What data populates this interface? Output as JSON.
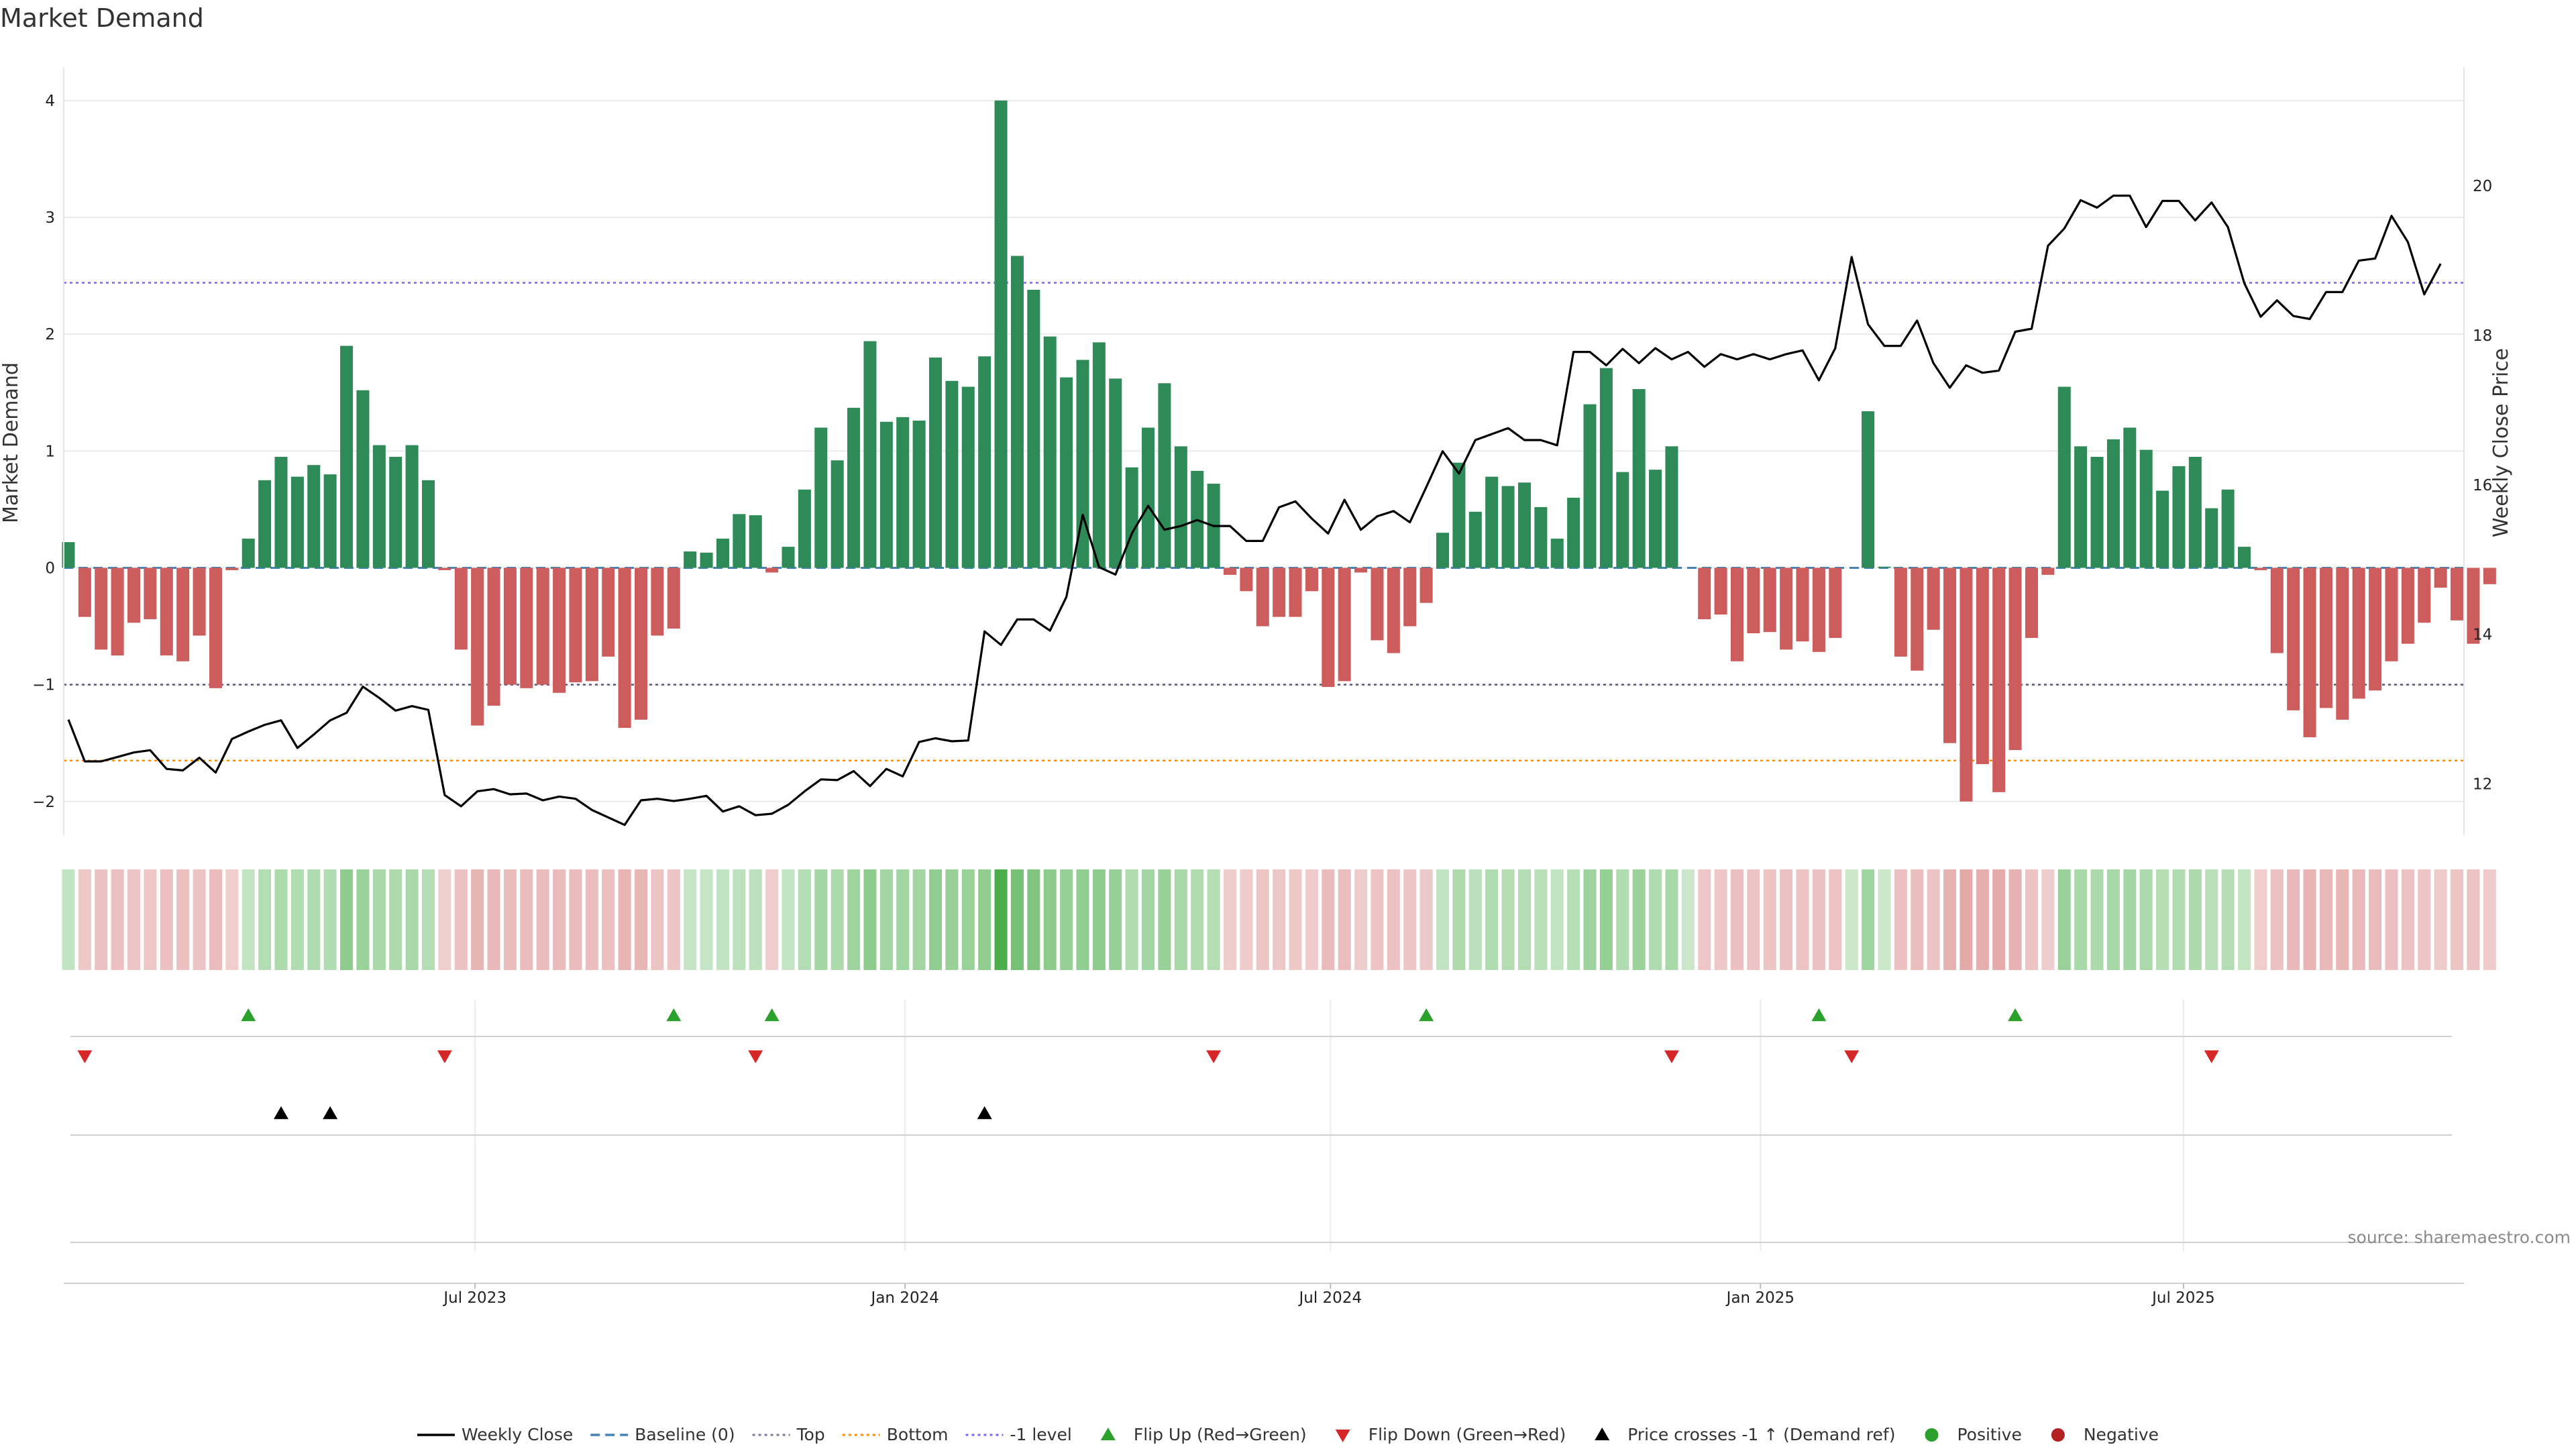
{
  "colors": {
    "green": "#2e8b57",
    "red": "#cd5c5c",
    "line": "#000000",
    "baseline": "#4682b4",
    "top": "#7b68ee",
    "bottom": "#ff8c00",
    "minus_one": "#555577",
    "flip_up": "#2ca02c",
    "flip_down": "#d62728",
    "cross": "#000000",
    "positive": "#2ca02c",
    "negative": "#b22222",
    "grid": "#ececec",
    "source": "#8a8a8a"
  },
  "chart_data": {
    "type": "bar",
    "title": "Market Demand",
    "ylabel": "Market Demand",
    "y2label": "Weekly Close Price",
    "source": "source: sharemaestro.com",
    "ylim": [
      -2.3,
      4.2
    ],
    "y2lim": [
      10.9,
      21.6
    ],
    "yticks": [
      -2,
      -1,
      0,
      1,
      2,
      3,
      4
    ],
    "y2ticks": [
      12,
      14,
      16,
      18,
      20
    ],
    "xlim": [
      "2023-01-06",
      "2025-10-29"
    ],
    "xticks": [
      {
        "date": "2023-07-01",
        "label": "Jul 2023"
      },
      {
        "date": "2024-01-01",
        "label": "Jan 2024"
      },
      {
        "date": "2024-07-01",
        "label": "Jul 2024"
      },
      {
        "date": "2025-01-01",
        "label": "Jan 2025"
      },
      {
        "date": "2025-07-01",
        "label": "Jul 2025"
      }
    ],
    "reference_lines": {
      "baseline": 0,
      "top": 2.44,
      "bottom": -1.65,
      "minus_one": -1
    },
    "start_date": "2023-01-08",
    "week_step_days": 7,
    "demand": [
      0.22,
      -0.42,
      -0.7,
      -0.75,
      -0.47,
      -0.44,
      -0.75,
      -0.8,
      -0.58,
      -1.03,
      -0.02,
      0.25,
      0.75,
      0.95,
      0.78,
      0.88,
      0.8,
      1.9,
      1.52,
      1.05,
      0.95,
      1.05,
      0.75,
      -0.02,
      -0.7,
      -1.35,
      -1.18,
      -1.0,
      -1.03,
      -1.0,
      -1.07,
      -0.98,
      -0.97,
      -0.76,
      -1.37,
      -1.3,
      -0.58,
      -0.52,
      0.14,
      0.13,
      0.25,
      0.46,
      0.45,
      -0.04,
      0.18,
      0.67,
      1.2,
      0.92,
      1.37,
      1.94,
      1.25,
      1.29,
      1.26,
      1.8,
      1.6,
      1.55,
      1.81,
      4.0,
      2.67,
      2.38,
      1.98,
      1.63,
      1.78,
      1.93,
      1.62,
      0.86,
      1.2,
      1.58,
      1.04,
      0.83,
      0.72,
      -0.06,
      -0.2,
      -0.5,
      -0.42,
      -0.42,
      -0.2,
      -1.02,
      -0.97,
      -0.04,
      -0.62,
      -0.73,
      -0.5,
      -0.3,
      0.3,
      0.9,
      0.48,
      0.78,
      0.7,
      0.73,
      0.52,
      0.25,
      0.6,
      1.4,
      1.71,
      0.82,
      1.53,
      0.84,
      1.04,
      0.0,
      -0.44,
      -0.4,
      -0.8,
      -0.56,
      -0.55,
      -0.7,
      -0.63,
      -0.72,
      -0.6,
      0.0,
      1.34,
      0.01,
      -0.76,
      -0.88,
      -0.53,
      -1.5,
      -2.0,
      -1.68,
      -1.92,
      -1.56,
      -0.6,
      -0.06,
      1.55,
      1.04,
      0.95,
      1.1,
      1.2,
      1.01,
      0.66,
      0.87,
      0.95,
      0.51,
      0.67,
      0.18,
      -0.02,
      -0.73,
      -1.22,
      -1.45,
      -1.2,
      -1.3,
      -1.12,
      -1.05,
      -0.8,
      -0.65,
      -0.47,
      -0.17,
      -0.45,
      -0.65,
      -0.14
    ],
    "close": [
      12.86,
      12.3,
      12.3,
      12.36,
      12.42,
      12.45,
      12.2,
      12.18,
      12.35,
      12.15,
      12.6,
      12.7,
      12.79,
      12.85,
      12.48,
      12.66,
      12.85,
      12.95,
      13.3,
      13.15,
      12.98,
      13.04,
      12.99,
      11.85,
      11.7,
      11.9,
      11.93,
      11.86,
      11.87,
      11.78,
      11.83,
      11.8,
      11.65,
      11.55,
      11.45,
      11.78,
      11.8,
      11.77,
      11.8,
      11.84,
      11.63,
      11.7,
      11.58,
      11.6,
      11.72,
      11.9,
      12.06,
      12.05,
      12.17,
      11.97,
      12.2,
      12.1,
      12.56,
      12.61,
      12.57,
      12.58,
      14.04,
      13.86,
      14.2,
      14.2,
      14.05,
      14.5,
      15.6,
      14.9,
      14.8,
      15.35,
      15.72,
      15.4,
      15.45,
      15.53,
      15.45,
      15.45,
      15.25,
      15.25,
      15.7,
      15.78,
      15.55,
      15.35,
      15.8,
      15.4,
      15.58,
      15.65,
      15.5,
      15.97,
      16.45,
      16.15,
      16.6,
      16.68,
      16.76,
      16.6,
      16.6,
      16.53,
      17.78,
      17.78,
      17.6,
      17.82,
      17.63,
      17.83,
      17.68,
      17.78,
      17.58,
      17.75,
      17.68,
      17.75,
      17.68,
      17.75,
      17.8,
      17.4,
      17.83,
      19.05,
      18.15,
      17.86,
      17.86,
      18.2,
      17.63,
      17.3,
      17.6,
      17.5,
      17.53,
      18.05,
      18.09,
      19.2,
      19.43,
      19.81,
      19.71,
      19.87,
      19.87,
      19.45,
      19.8,
      19.8,
      19.54,
      19.78,
      19.45,
      18.7,
      18.25,
      18.47,
      18.26,
      18.22,
      18.58,
      18.58,
      19.0,
      19.03,
      19.6,
      19.25,
      18.55,
      18.96
    ],
    "flip_up_weeks": [
      11,
      37,
      43,
      83,
      107,
      119
    ],
    "flip_down_weeks": [
      1,
      23,
      42,
      70,
      98,
      109,
      131
    ],
    "cross_weeks": [
      13,
      16,
      56
    ],
    "legend": [
      {
        "key": "close",
        "label": "Weekly Close"
      },
      {
        "key": "baseline",
        "label": "Baseline (0)"
      },
      {
        "key": "top",
        "label": "Top"
      },
      {
        "key": "bottom",
        "label": "Bottom"
      },
      {
        "key": "minus_one",
        "label": "-1 level"
      },
      {
        "key": "flip_up",
        "label": "Flip Up (Red→Green)"
      },
      {
        "key": "flip_down",
        "label": "Flip Down (Green→Red)"
      },
      {
        "key": "cross",
        "label": "Price crosses -1 ↑ (Demand ref)"
      },
      {
        "key": "positive",
        "label": "Positive"
      },
      {
        "key": "negative",
        "label": "Negative"
      }
    ]
  }
}
